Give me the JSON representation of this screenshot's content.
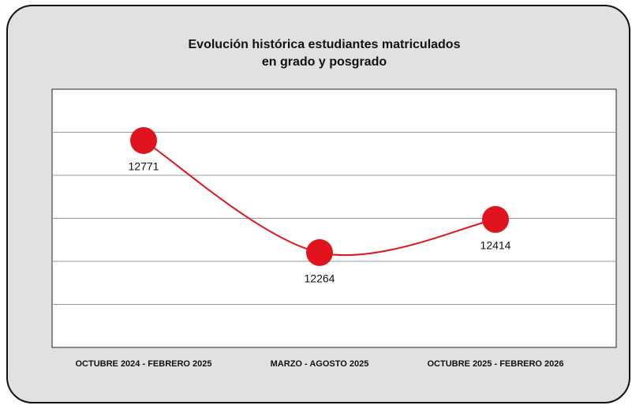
{
  "chart_data": {
    "type": "line",
    "title": [
      "Evolución histórica estudiantes matriculados",
      "en grado y posgrado"
    ],
    "categories": [
      "OCTUBRE 2024 - FEBRERO 2025",
      "MARZO - AGOSTO 2025",
      "OCTUBRE 2025 - FEBRERO 2026"
    ],
    "series": [
      {
        "name": "Estudiantes matriculados",
        "color": "#e0141e",
        "values": [
          12771,
          12264,
          12414
        ]
      }
    ],
    "ylim": [
      11835,
      13003
    ],
    "grid": true
  }
}
